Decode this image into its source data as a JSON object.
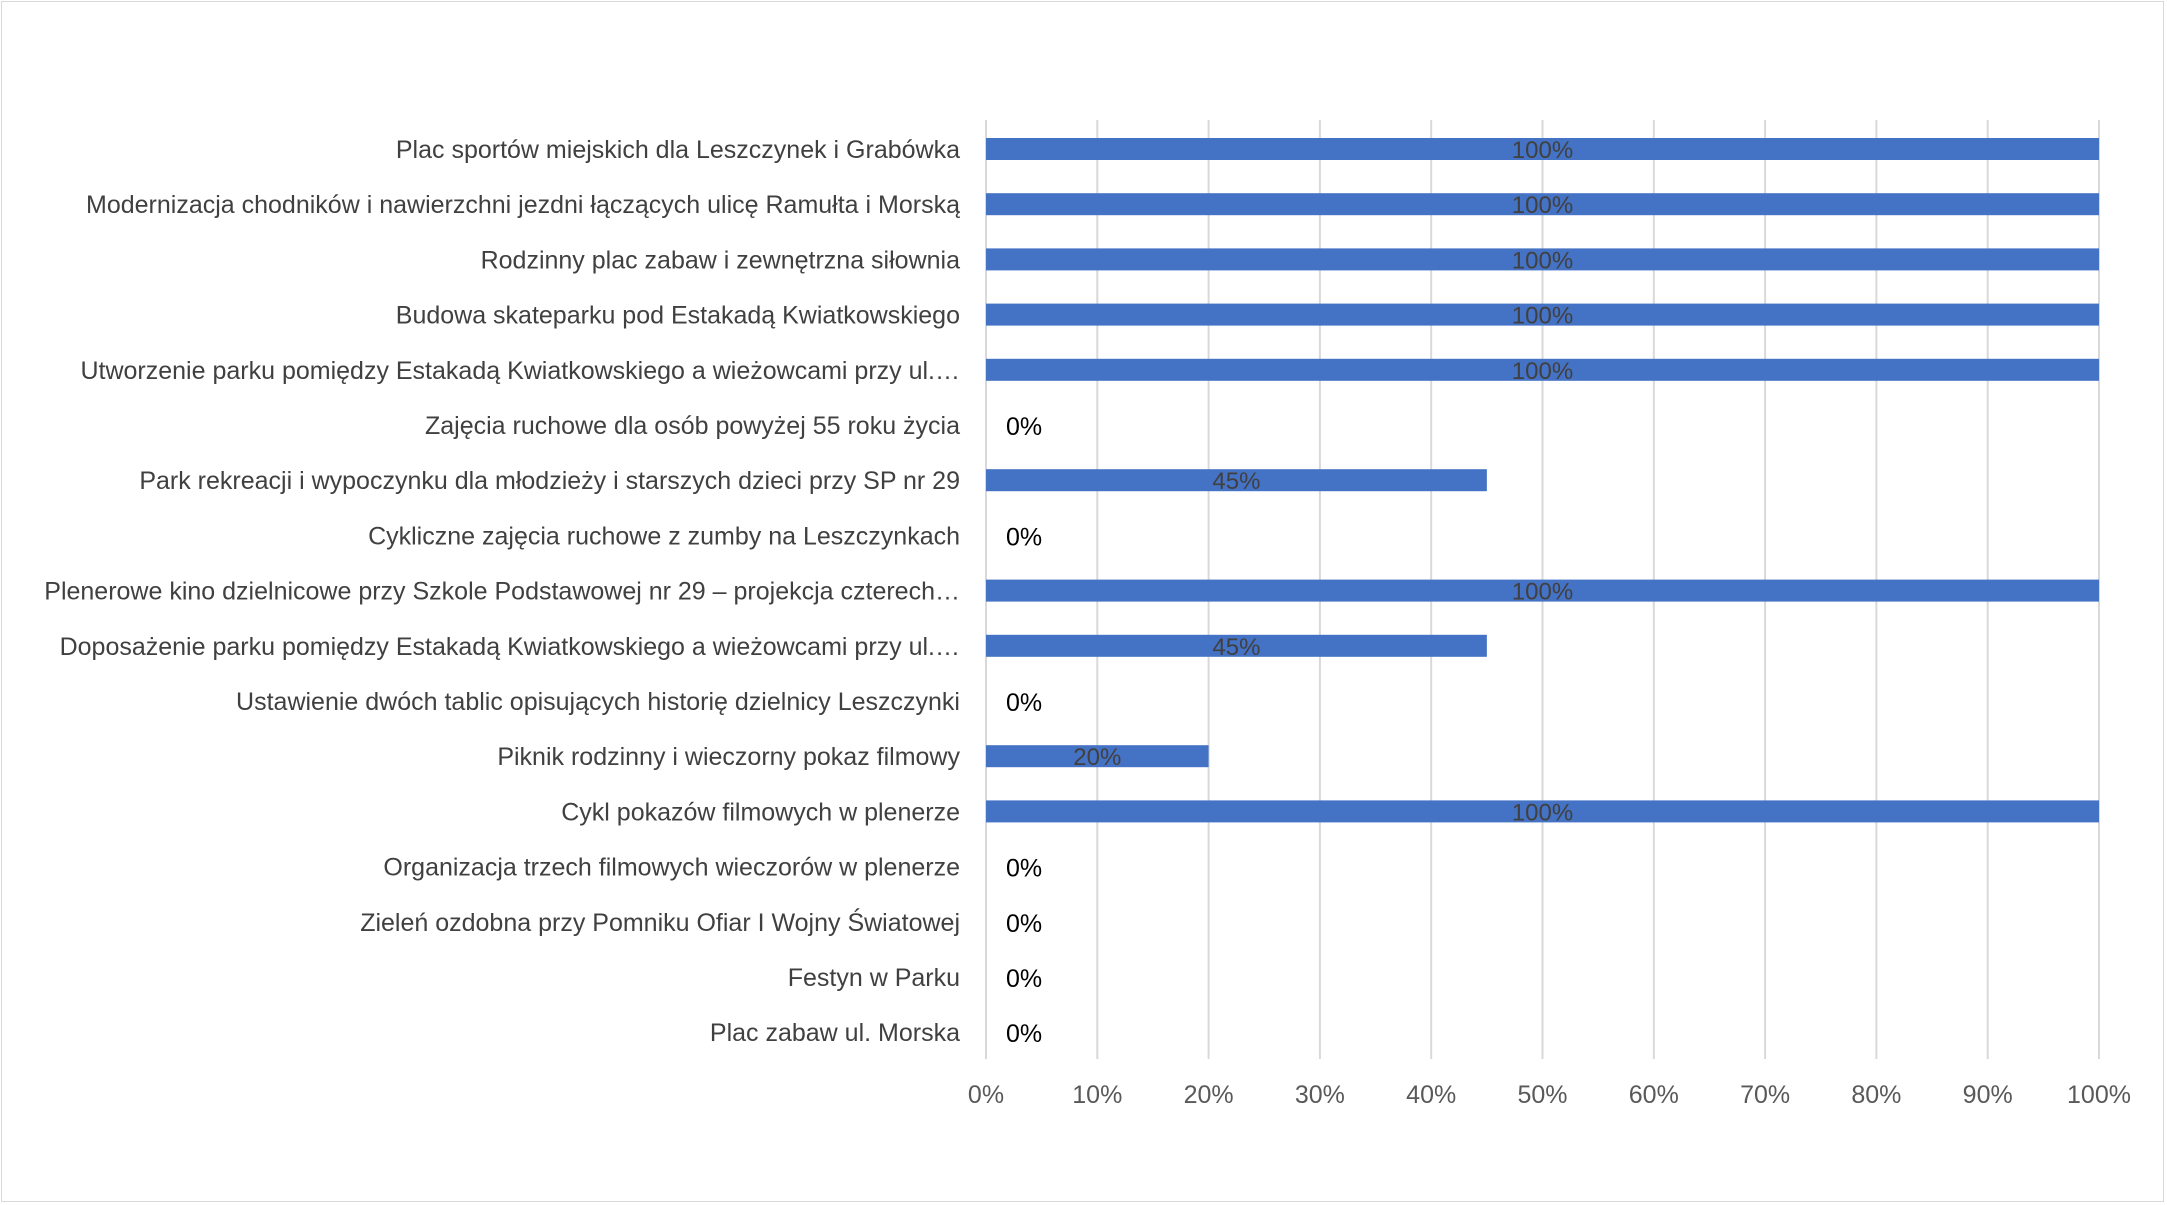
{
  "chart_data": {
    "type": "bar",
    "orientation": "horizontal",
    "categories": [
      "Plac sportów miejskich dla Leszczynek i Grabówka",
      "Modernizacja chodników i nawierzchni jezdni łączących ulicę Ramułta i Morską",
      "Rodzinny plac zabaw i zewnętrzna siłownia",
      "Budowa skateparku pod Estakadą Kwiatkowskiego",
      "Utworzenie parku pomiędzy Estakadą Kwiatkowskiego a wieżowcami przy ul.…",
      "Zajęcia ruchowe dla osób powyżej 55 roku życia",
      "Park rekreacji i wypoczynku dla młodzieży i starszych dzieci przy SP nr 29",
      "Cykliczne zajęcia ruchowe z zumby na Leszczynkach",
      "Plenerowe kino dzielnicowe przy Szkole Podstawowej nr 29 – projekcja czterech…",
      "Doposażenie parku pomiędzy Estakadą Kwiatkowskiego a wieżowcami przy ul.…",
      "Ustawienie dwóch tablic opisujących historię dzielnicy Leszczynki",
      "Piknik rodzinny i wieczorny pokaz filmowy",
      "Cykl pokazów filmowych w plenerze",
      "Organizacja trzech filmowych wieczorów w plenerze",
      "Zieleń ozdobna przy Pomniku Ofiar I Wojny Światowej",
      "Festyn w Parku",
      "Plac zabaw ul. Morska"
    ],
    "values": [
      100,
      100,
      100,
      100,
      100,
      0,
      45,
      0,
      100,
      45,
      0,
      20,
      100,
      0,
      0,
      0,
      0
    ],
    "data_labels": [
      "100%",
      "100%",
      "100%",
      "100%",
      "100%",
      "0%",
      "45%",
      "0%",
      "100%",
      "45%",
      "0%",
      "20%",
      "100%",
      "0%",
      "0%",
      "0%",
      "0%"
    ],
    "x_ticks": [
      "0%",
      "10%",
      "20%",
      "30%",
      "40%",
      "50%",
      "60%",
      "70%",
      "80%",
      "90%",
      "100%"
    ],
    "xlim": [
      0,
      100
    ],
    "grid": "vertical",
    "legend": "none",
    "title": "",
    "xlabel": "",
    "ylabel": "",
    "bar_color": "#4472c4",
    "grid_color": "#d9d9d9"
  }
}
